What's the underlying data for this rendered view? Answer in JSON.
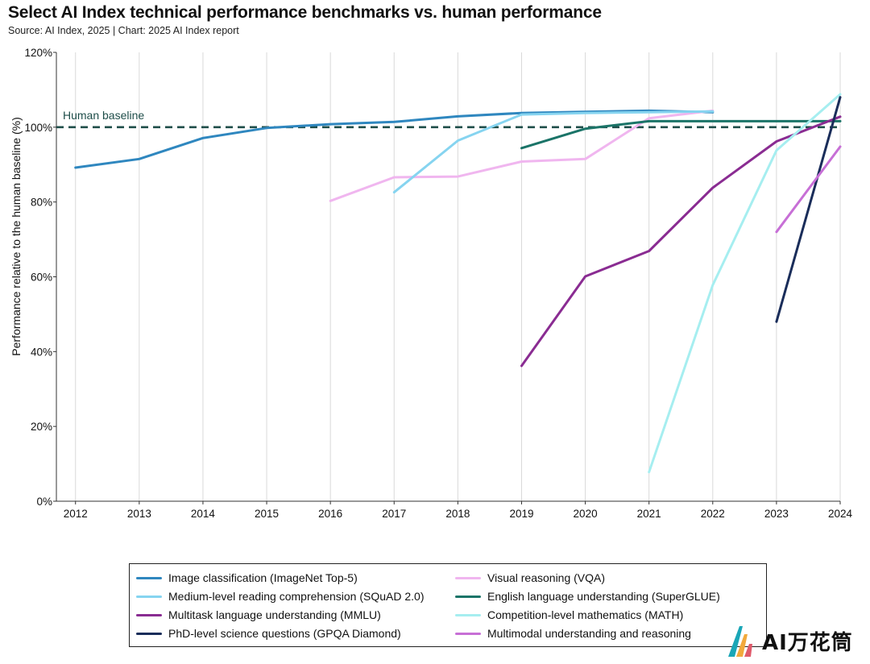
{
  "header": {
    "title": "Select AI Index technical performance benchmarks vs. human performance",
    "subtitle": "Source: AI Index, 2025 | Chart: 2025 AI Index report"
  },
  "watermark": {
    "text": "AI万花筒"
  },
  "chart_data": {
    "type": "line",
    "title": "Select AI Index technical performance benchmarks vs. human performance",
    "subtitle": "Source: AI Index, 2025 | Chart: 2025 AI Index report",
    "xlabel": "",
    "ylabel": "Performance relative to the human baseline (%)",
    "x_ticks": [
      2012,
      2013,
      2014,
      2015,
      2016,
      2017,
      2018,
      2019,
      2020,
      2021,
      2022,
      2023,
      2024
    ],
    "y_ticks": [
      0,
      20,
      40,
      60,
      80,
      100,
      120
    ],
    "y_tick_labels": [
      "0%",
      "20%",
      "40%",
      "60%",
      "80%",
      "100%",
      "120%"
    ],
    "xlim": [
      2011.7,
      2024
    ],
    "ylim": [
      0,
      120
    ],
    "grid": "vertical",
    "legend_position": "bottom",
    "baseline": {
      "label": "Human baseline",
      "value": 100,
      "color": "#1f4e4a"
    },
    "series": [
      {
        "name": "Image classification (ImageNet Top-5)",
        "color": "#2f87bf",
        "x": [
          2012,
          2013,
          2014,
          2015,
          2016,
          2017,
          2018,
          2019,
          2020,
          2021,
          2022
        ],
        "y": [
          89.2,
          91.5,
          97.1,
          99.8,
          100.8,
          101.4,
          102.9,
          103.8,
          104.1,
          104.4,
          104.0
        ]
      },
      {
        "name": "Visual reasoning (VQA)",
        "color": "#f0b6ef",
        "x": [
          2016,
          2017,
          2018,
          2019,
          2020,
          2021,
          2022
        ],
        "y": [
          80.3,
          86.6,
          86.8,
          90.8,
          91.5,
          102.4,
          104.4
        ]
      },
      {
        "name": "Medium-level reading comprehension (SQuAD 2.0)",
        "color": "#86d4f0",
        "x": [
          2017,
          2018,
          2019,
          2020,
          2021,
          2022
        ],
        "y": [
          82.6,
          96.4,
          103.4,
          103.8,
          104.0,
          104.2
        ]
      },
      {
        "name": "English language understanding (SuperGLUE)",
        "color": "#1b7468",
        "x": [
          2019,
          2020,
          2021,
          2022,
          2023,
          2024
        ],
        "y": [
          94.4,
          99.6,
          101.6,
          101.6,
          101.6,
          101.6
        ]
      },
      {
        "name": "Multitask language understanding (MMLU)",
        "color": "#8a2c92",
        "x": [
          2019,
          2020,
          2021,
          2022,
          2023,
          2024
        ],
        "y": [
          36.2,
          60.1,
          66.9,
          83.8,
          96.2,
          102.8
        ]
      },
      {
        "name": "Competition-level mathematics (MATH)",
        "color": "#a6eef0",
        "x": [
          2021,
          2022,
          2023,
          2024
        ],
        "y": [
          7.8,
          57.8,
          93.8,
          108.8
        ]
      },
      {
        "name": "PhD-level science questions (GPQA Diamond)",
        "color": "#1a2d5a",
        "x": [
          2023,
          2024
        ],
        "y": [
          48.0,
          108.0
        ]
      },
      {
        "name": "Multimodal understanding and reasoning",
        "color": "#c76fd6",
        "x": [
          2023,
          2024
        ],
        "y": [
          72.0,
          94.8
        ]
      }
    ]
  }
}
